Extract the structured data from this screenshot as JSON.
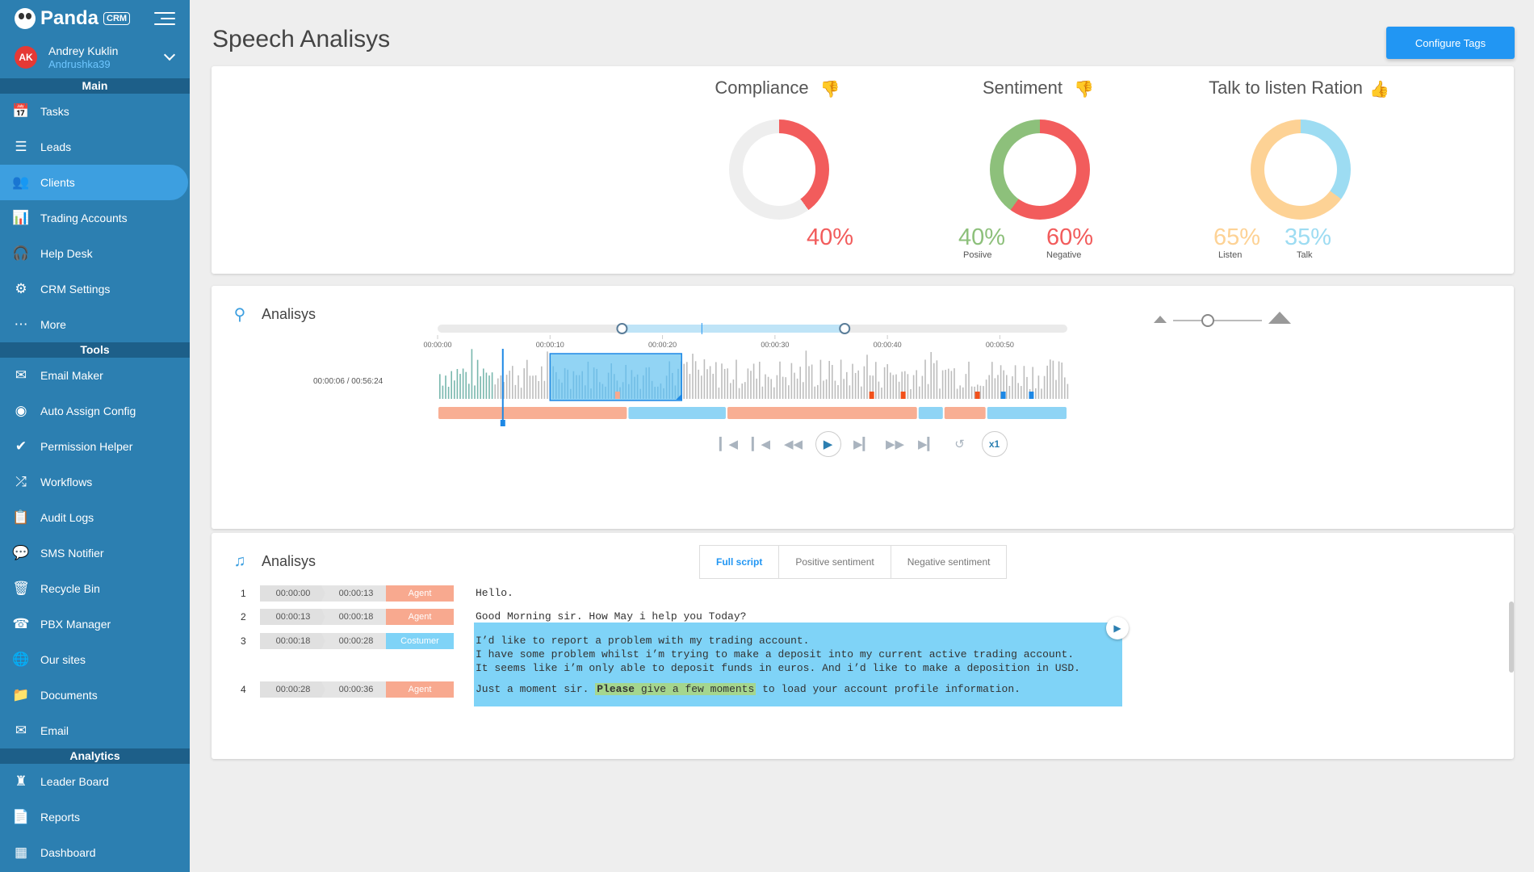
{
  "app": {
    "brand": "Panda",
    "brand_badge": "CRM"
  },
  "user": {
    "initials": "AK",
    "name": "Andrey Kuklin",
    "login": "Andrushka39"
  },
  "sidebar": {
    "sections": [
      {
        "title": "Main",
        "items": [
          {
            "label": "Tasks",
            "icon": "calendar-icon",
            "active": false
          },
          {
            "label": "Leads",
            "icon": "list-icon",
            "active": false
          },
          {
            "label": "Clients",
            "icon": "people-icon",
            "active": true
          },
          {
            "label": "Trading Accounts",
            "icon": "bar-chart-icon",
            "active": false
          },
          {
            "label": "Help Desk",
            "icon": "headset-icon",
            "active": false
          },
          {
            "label": "CRM Settings",
            "icon": "gear-icon",
            "active": false
          },
          {
            "label": "More",
            "icon": "more-icon",
            "active": false
          }
        ]
      },
      {
        "title": "Tools",
        "items": [
          {
            "label": "Email Maker",
            "icon": "mail-icon",
            "active": false
          },
          {
            "label": "Auto Assign Config",
            "icon": "toggle-icon",
            "active": false
          },
          {
            "label": "Permission Helper",
            "icon": "check-circle-icon",
            "active": false
          },
          {
            "label": "Workflows",
            "icon": "shuffle-icon",
            "active": false
          },
          {
            "label": "Audit Logs",
            "icon": "clipboard-icon",
            "active": false
          },
          {
            "label": "SMS Notifier",
            "icon": "sms-icon",
            "active": false
          },
          {
            "label": "Recycle Bin",
            "icon": "trash-icon",
            "active": false
          },
          {
            "label": "PBX Manager",
            "icon": "phone-icon",
            "active": false
          },
          {
            "label": "Our sites",
            "icon": "globe-icon",
            "active": false
          },
          {
            "label": "Documents",
            "icon": "folder-icon",
            "active": false
          },
          {
            "label": "Email",
            "icon": "envelope-icon",
            "active": false
          }
        ]
      },
      {
        "title": "Analytics",
        "items": [
          {
            "label": "Leader Board",
            "icon": "chess-icon",
            "active": false
          },
          {
            "label": "Reports",
            "icon": "report-icon",
            "active": false
          },
          {
            "label": "Dashboard",
            "icon": "dashboard-icon",
            "active": false
          }
        ]
      }
    ]
  },
  "page": {
    "title": "Speech Analisys",
    "configure_label": "Configure Tags"
  },
  "metrics": {
    "compliance": {
      "title": "Compliance",
      "thumb": "thumbs-down-icon",
      "value": 40,
      "value_label": "40%",
      "color": "#f25c5c",
      "rest_color": "#eeeeee"
    },
    "sentiment": {
      "title": "Sentiment",
      "thumb": "thumbs-down-icon",
      "positive": 40,
      "negative": 60,
      "positive_label": "40%",
      "negative_label": "60%",
      "positive_caption": "Posiive",
      "negative_caption": "Negative",
      "positive_color": "#8dc07b",
      "negative_color": "#f25c5c"
    },
    "talk_listen": {
      "title": "Talk to listen Ration",
      "thumb": "thumbs-up-icon",
      "listen": 65,
      "talk": 35,
      "listen_label": "65%",
      "talk_label": "35%",
      "listen_caption": "Listen",
      "talk_caption": "Talk",
      "listen_color": "#fdd295",
      "talk_color": "#9ddcf2"
    }
  },
  "waveform": {
    "title": "Analisys",
    "time_readout": "00:00:06 / 00:56:24",
    "ticks": [
      "00:00:00",
      "00:00:10",
      "00:00:20",
      "00:00:30",
      "00:00:40",
      "00:00:50"
    ],
    "duration_s": 56,
    "cursor_s": 5.8,
    "selection_s": [
      10,
      21.7
    ],
    "range_handles_s": [
      16.4,
      36.2
    ],
    "speakers": [
      {
        "role": "agent",
        "start": 0,
        "end": 16.9
      },
      {
        "role": "customer",
        "start": 16.9,
        "end": 25.7
      },
      {
        "role": "agent",
        "start": 25.7,
        "end": 42.7
      },
      {
        "role": "customer",
        "start": 42.7,
        "end": 45.0
      },
      {
        "role": "agent",
        "start": 45.0,
        "end": 48.8
      },
      {
        "role": "customer",
        "start": 48.8,
        "end": 56
      }
    ],
    "markers": [
      {
        "t": 16.0,
        "color": "#f8a98f"
      },
      {
        "t": 38.6,
        "color": "#f2511b"
      },
      {
        "t": 41.4,
        "color": "#f2511b"
      },
      {
        "t": 48.0,
        "color": "#f2511b"
      },
      {
        "t": 50.3,
        "color": "#1e88e5"
      },
      {
        "t": 52.8,
        "color": "#1e88e5"
      }
    ],
    "agent_color": "#f8ae93",
    "customer_color": "#8ed4f5",
    "speed_label": "x1"
  },
  "script": {
    "title": "Analisys",
    "tabs": [
      "Full script",
      "Positive sentiment",
      "Negative sentiment"
    ],
    "active_tab": 0,
    "rows": [
      {
        "num": "1",
        "start": "00:00:00",
        "end": "00:00:13",
        "role": "Agent",
        "text": "Hello."
      },
      {
        "num": "2",
        "start": "00:00:13",
        "end": "00:00:18",
        "role": "Agent",
        "text": "Good Morning sir. How May i help you Today?"
      },
      {
        "num": "3",
        "start": "00:00:18",
        "end": "00:00:28",
        "role": "Costumer",
        "lines": [
          "I’d like to report a problem with my trading account.",
          "I have some problem whilst i’m trying to make a deposit into my current active trading account.",
          "It seems like i’m only able to deposit funds in euros. And i’d like to make a deposition in USD."
        ]
      },
      {
        "num": "4",
        "start": "00:00:28",
        "end": "00:00:36",
        "role": "Agent",
        "text_before": "Just a moment sir. ",
        "text_bold": "Please",
        "text_highlight": " give a few moments",
        "text_after": " to load your account profile information."
      }
    ]
  }
}
